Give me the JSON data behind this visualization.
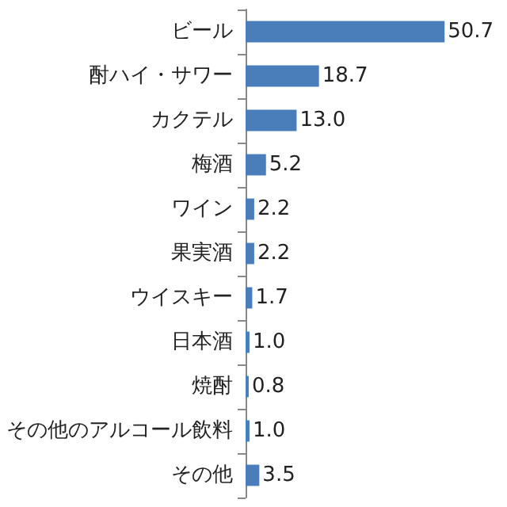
{
  "chart_data": {
    "type": "bar",
    "orientation": "horizontal",
    "categories": [
      "ビール",
      "酎ハイ・サワー",
      "カクテル",
      "梅酒",
      "ワイン",
      "果実酒",
      "ウイスキー",
      "日本酒",
      "焼酎",
      "その他のアルコール飲料",
      "その他"
    ],
    "values": [
      50.7,
      18.7,
      13.0,
      5.2,
      2.2,
      2.2,
      1.7,
      1.0,
      0.8,
      1.0,
      3.5
    ],
    "value_labels": [
      "50.7",
      "18.7",
      "13.0",
      "5.2",
      "2.2",
      "2.2",
      "1.7",
      "1.0",
      "0.8",
      "1.0",
      "3.5"
    ],
    "color": "#4a7ebb"
  }
}
